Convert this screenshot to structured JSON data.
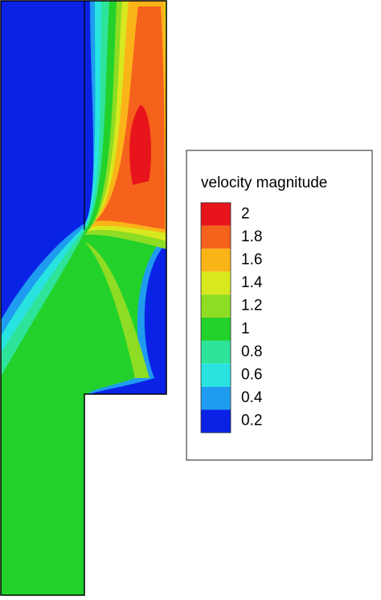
{
  "chart_data": {
    "type": "contour",
    "legend_title": "velocity magnitude",
    "levels": [
      2,
      1.8,
      1.6,
      1.4,
      1.2,
      1,
      0.8,
      0.6,
      0.4,
      0.2
    ],
    "colors": [
      "#e8141c",
      "#f5621c",
      "#fbb418",
      "#d8e81e",
      "#8edc24",
      "#22d22a",
      "#2ee39a",
      "#28e3e0",
      "#1f9cf0",
      "#0a22e6"
    ]
  }
}
